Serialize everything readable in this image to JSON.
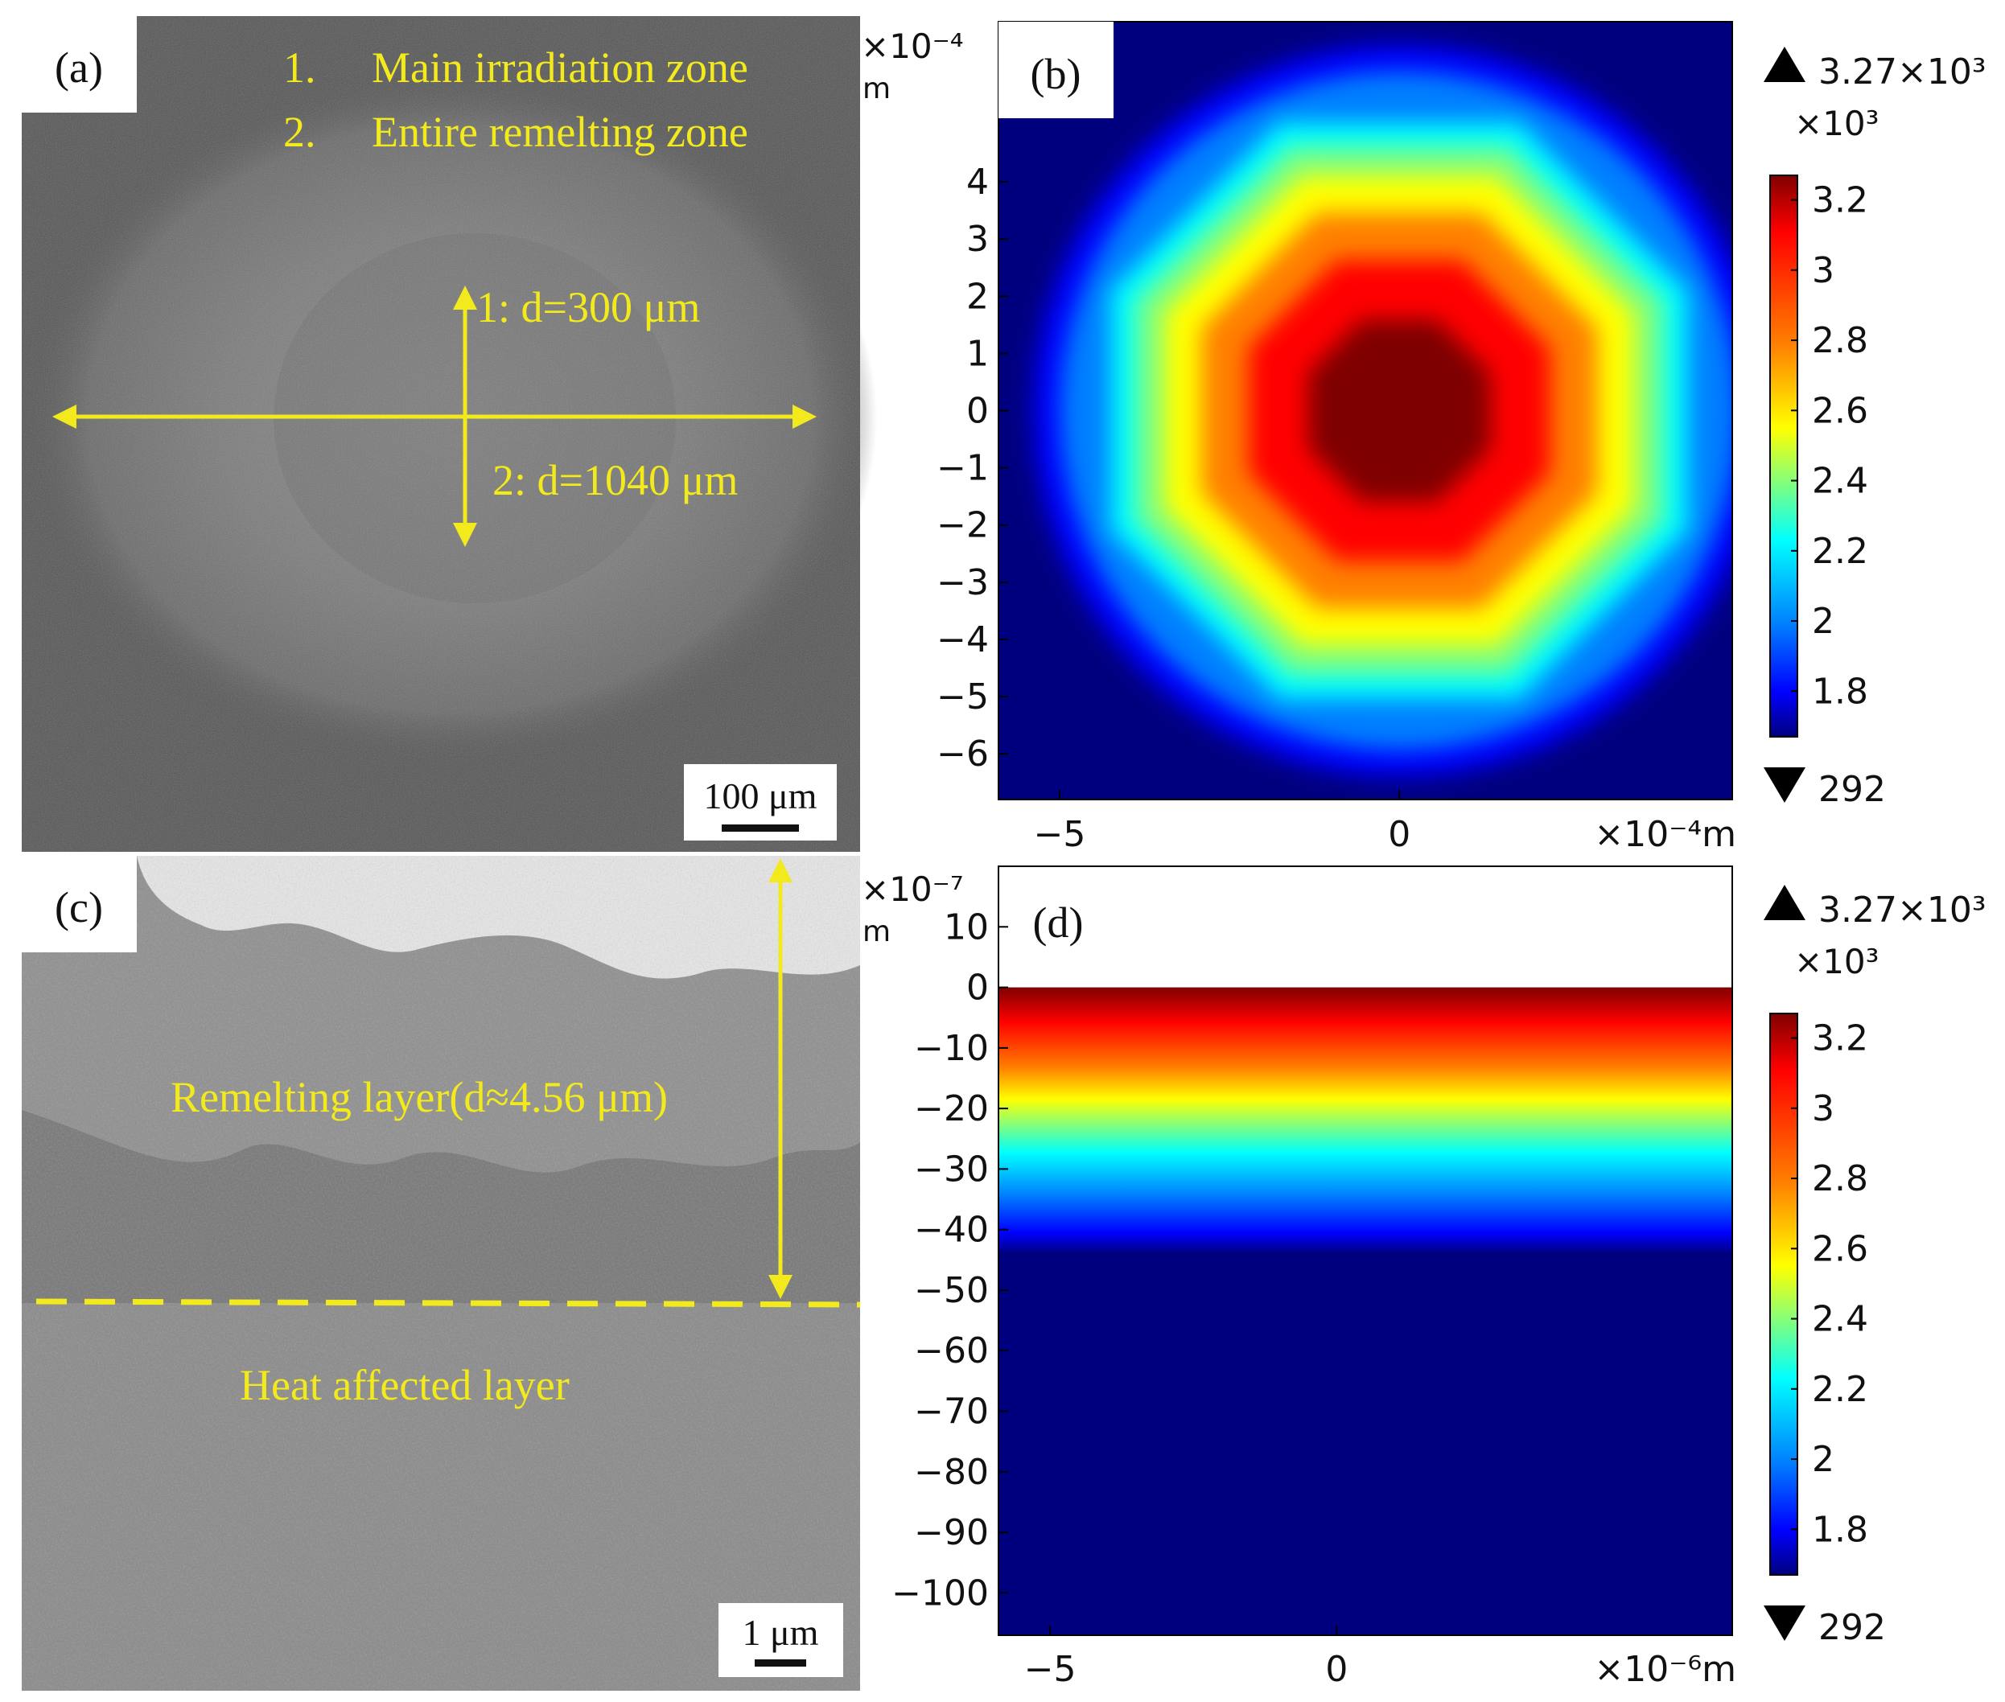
{
  "panels": {
    "a": {
      "label": "(a)",
      "legend_items": [
        {
          "number": "1.",
          "text": "Main irradiation zone"
        },
        {
          "number": "2.",
          "text": "Entire remelting zone"
        }
      ],
      "annotation_1": "1:  d=300 μm",
      "annotation_2": "2:  d=1040 μm",
      "scale_bar": "100 μm"
    },
    "c": {
      "label": "(c)",
      "remelt_label": "Remelting layer(d≈4.56 μm)",
      "heat_label": "Heat affected layer",
      "scale_bar": "1 μm"
    }
  },
  "colors": {
    "annotation": "#f2ea1c",
    "colormap": [
      "#00007f",
      "#0000ff",
      "#007fff",
      "#00ffff",
      "#7fff7f",
      "#ffff00",
      "#ff7f00",
      "#ff0000",
      "#7f0000"
    ]
  },
  "chart_data": [
    {
      "type": "heatmap",
      "panel_label": "(b)",
      "x_ticks": [
        "-5",
        "0"
      ],
      "x_tick_values": [
        -5,
        0
      ],
      "x_unit": "×10⁻⁴m",
      "xlim": [
        -5.9,
        4.9
      ],
      "y_ticks": [
        "4",
        "3",
        "2",
        "1",
        "0",
        "−1",
        "−2",
        "−3",
        "−4",
        "−5",
        "−6"
      ],
      "y_tick_values": [
        4,
        3,
        2,
        1,
        0,
        -1,
        -2,
        -3,
        -4,
        -5,
        -6
      ],
      "y_exponent": "×10⁻⁴",
      "y_unit": "m",
      "ylim": [
        -6.8,
        6.8
      ],
      "field": "radial temperature, octagonal contours centred at (0, 0)",
      "colorbar": {
        "max_label": "3.27×10³",
        "min_label": "292",
        "multiplier": "×10³",
        "ticks": [
          "3.2",
          "3",
          "2.8",
          "2.6",
          "2.4",
          "2.2",
          "2",
          "1.8"
        ],
        "tick_values": [
          3.2,
          3.0,
          2.8,
          2.6,
          2.4,
          2.2,
          2.0,
          1.8
        ],
        "range": [
          1.67,
          3.27
        ]
      }
    },
    {
      "type": "heatmap",
      "panel_label": "(d)",
      "x_ticks": [
        "-5",
        "0"
      ],
      "x_tick_values": [
        -5,
        0
      ],
      "x_unit": "×10⁻⁶m",
      "xlim": [
        -5.9,
        6.9
      ],
      "y_ticks": [
        "10",
        "0",
        "−10",
        "−20",
        "−30",
        "−40",
        "−50",
        "−60",
        "−70",
        "−80",
        "−90",
        "−100"
      ],
      "y_tick_values": [
        10,
        0,
        -10,
        -20,
        -30,
        -40,
        -50,
        -60,
        -70,
        -80,
        -90,
        -100
      ],
      "y_exponent": "×10⁻⁷",
      "y_unit": "m",
      "ylim": [
        -107,
        20
      ],
      "field": "temperature vs depth, surface at y = 0, decaying to minimum near y = -44",
      "colorbar": {
        "max_label": "3.27×10³",
        "min_label": "292",
        "multiplier": "×10³",
        "ticks": [
          "3.2",
          "3",
          "2.8",
          "2.6",
          "2.4",
          "2.2",
          "2",
          "1.8"
        ],
        "tick_values": [
          3.2,
          3.0,
          2.8,
          2.6,
          2.4,
          2.2,
          2.0,
          1.8
        ],
        "range": [
          1.67,
          3.27
        ]
      }
    }
  ]
}
